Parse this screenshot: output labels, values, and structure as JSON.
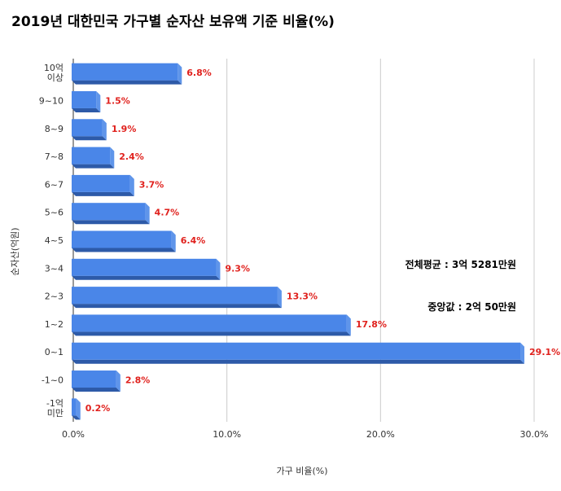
{
  "chart_data": {
    "type": "bar",
    "orientation": "horizontal",
    "title": "2019년 대한민국 가구별 순자산 보유액 기준 비율(%)",
    "xlabel": "가구 비율(%)",
    "ylabel": "순자산(억원)",
    "categories": [
      "10억\n이상",
      "9~10",
      "8~9",
      "7~8",
      "6~7",
      "5~6",
      "4~5",
      "3~4",
      "2~3",
      "1~2",
      "0~1",
      "-1~0",
      "-1억\n미만"
    ],
    "values": [
      6.8,
      1.5,
      1.9,
      2.4,
      3.7,
      4.7,
      6.4,
      9.3,
      13.3,
      17.8,
      29.1,
      2.8,
      0.2
    ],
    "value_labels": [
      "6.8%",
      "1.5%",
      "1.9%",
      "2.4%",
      "3.7%",
      "4.7%",
      "6.4%",
      "9.3%",
      "13.3%",
      "17.8%",
      "29.1%",
      "2.8%",
      "0.2%"
    ],
    "xlim": [
      0,
      30
    ],
    "xticks": [
      "0.0%",
      "10.0%",
      "20.0%",
      "30.0%"
    ],
    "xtick_values": [
      0,
      10,
      20,
      30
    ],
    "grid": true,
    "bar_color": "#4a86e8",
    "bar_shadow_color": "#2d5aa8",
    "label_color": "#e0211d",
    "annotations": [
      "전체평균 : 3억 5281만원",
      "중앙값 : 2억 50만원"
    ]
  }
}
